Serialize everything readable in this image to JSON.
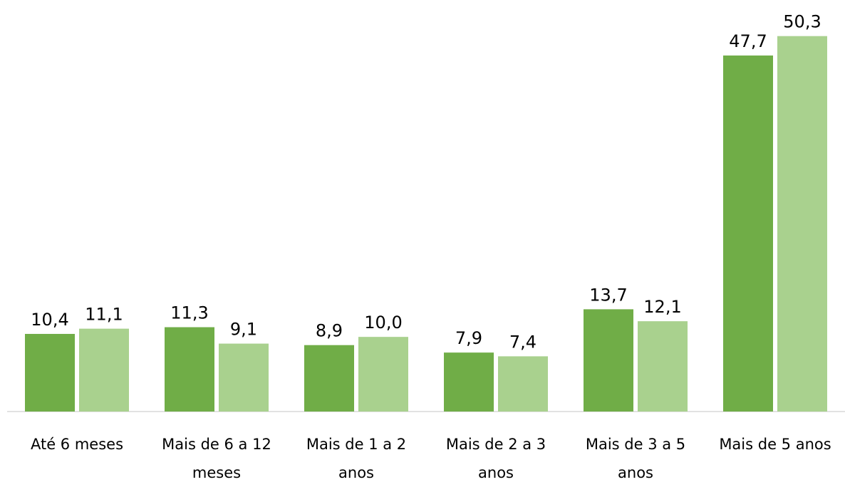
{
  "chart_data": {
    "type": "bar",
    "categories": [
      "Até 6 meses",
      "Mais de 6 a 12 meses",
      "Mais de 1 a 2 anos",
      "Mais de 2 a 3 anos",
      "Mais de 3 a 5 anos",
      "Mais de 5 anos"
    ],
    "series": [
      {
        "color": "#70ad47",
        "values": [
          10.4,
          11.3,
          8.9,
          7.9,
          13.7,
          47.7
        ],
        "value_labels": [
          "10,4",
          "11,3",
          "8,9",
          "7,9",
          "13,7",
          "47,7"
        ]
      },
      {
        "color": "#a9d18e",
        "values": [
          11.1,
          9.1,
          10.0,
          7.4,
          12.1,
          50.3
        ],
        "value_labels": [
          "11,1",
          "9,1",
          "10,0",
          "7,4",
          "12,1",
          "50,3"
        ]
      }
    ],
    "ylim": [
      0,
      60
    ]
  }
}
